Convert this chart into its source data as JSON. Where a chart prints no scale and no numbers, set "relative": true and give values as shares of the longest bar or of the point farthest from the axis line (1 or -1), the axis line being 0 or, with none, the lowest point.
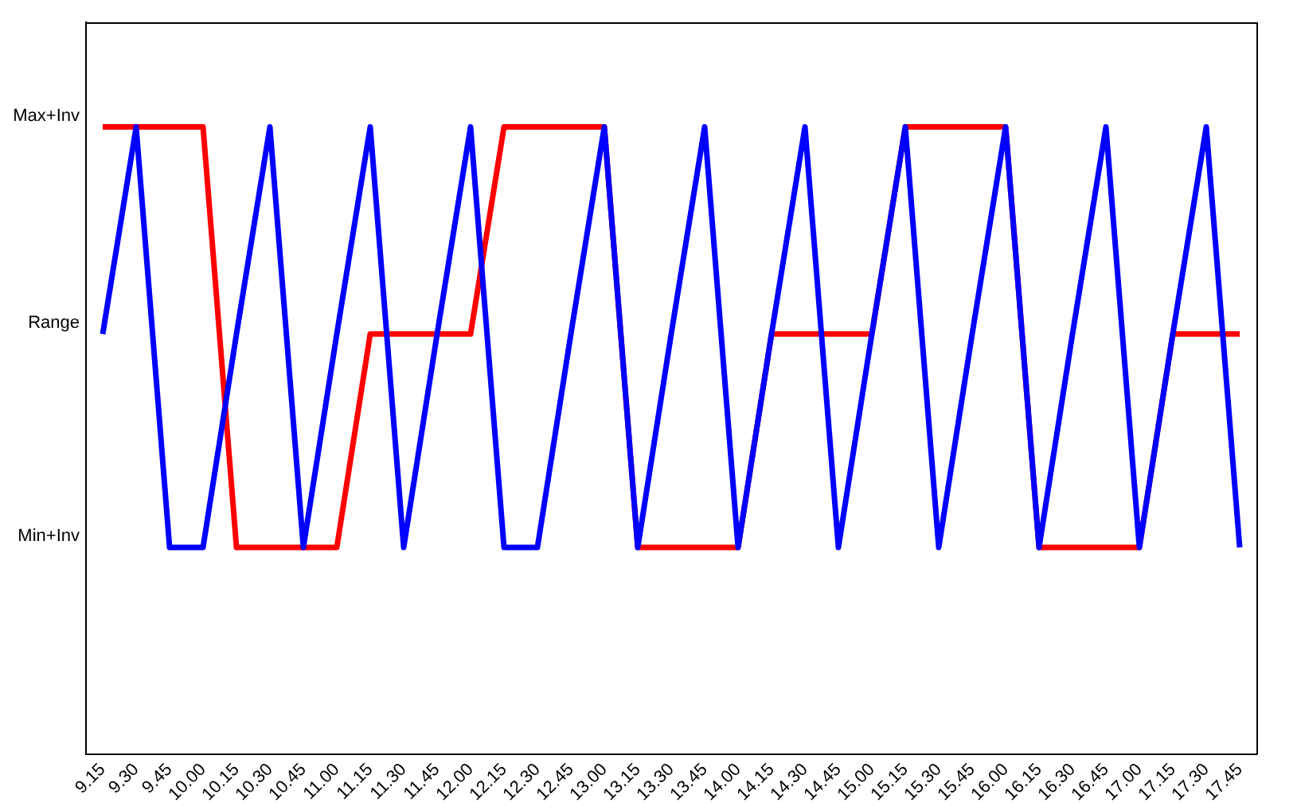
{
  "chart_data": {
    "type": "line",
    "categories": [
      "9.15",
      "9.30",
      "9.45",
      "10.00",
      "10.15",
      "10.30",
      "10.45",
      "11.00",
      "11.15",
      "11.30",
      "11.45",
      "12.00",
      "12.15",
      "12.30",
      "12.45",
      "13.00",
      "13.15",
      "13.30",
      "13.45",
      "14.00",
      "14.15",
      "14.30",
      "14.45",
      "15.00",
      "15.15",
      "15.30",
      "15.45",
      "16.00",
      "16.15",
      "16.30",
      "16.45",
      "17.00",
      "17.15",
      "17.30",
      "17.45"
    ],
    "series": [
      {
        "color": "#0000ff",
        "values": [
          0.67,
          1,
          0.33,
          0.33,
          0.67,
          1,
          0.33,
          0.67,
          1,
          0.33,
          0.67,
          1,
          0.33,
          0.33,
          0.67,
          1,
          0.33,
          0.67,
          1,
          0.33,
          0.67,
          1,
          0.33,
          0.67,
          1,
          0.33,
          0.67,
          1,
          0.33,
          0.67,
          1,
          0.33,
          0.67,
          1,
          0.33
        ]
      },
      {
        "color": "#ff0000",
        "values": [
          1,
          1,
          1,
          1,
          0.33,
          0.33,
          0.33,
          0.33,
          0.67,
          0.67,
          0.67,
          0.67,
          1,
          1,
          1,
          1,
          0.33,
          0.33,
          0.33,
          0.33,
          0.67,
          0.67,
          0.67,
          0.67,
          1,
          1,
          1,
          1,
          0.33,
          0.33,
          0.33,
          0.33,
          0.67,
          0.67,
          0.67
        ]
      }
    ],
    "relative": true,
    "annotations": [
      "Max+Inv",
      "Range",
      "Min+Inv"
    ],
    "grid": false,
    "legend": false,
    "marker": "none",
    "line_style": "solid"
  }
}
